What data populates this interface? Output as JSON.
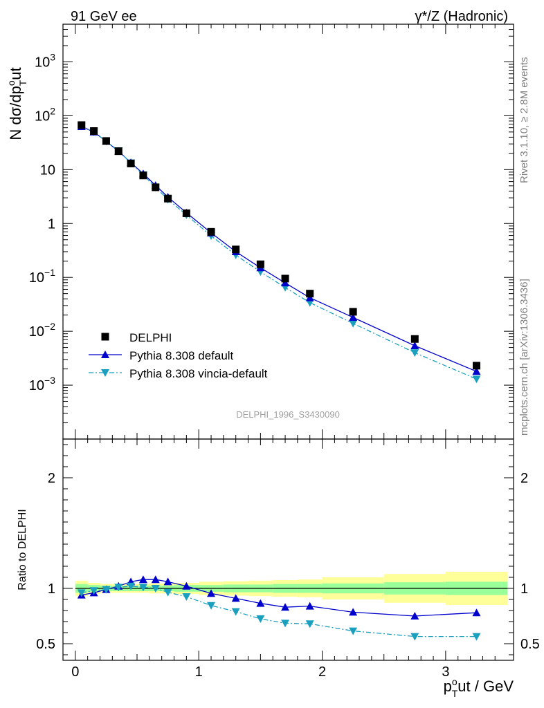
{
  "header": {
    "left": "91 GeV ee",
    "right": "γ*/Z (Hadronic)"
  },
  "side_text": {
    "rivet": "Rivet 3.1.10, ≥ 2.8M events",
    "mcplots": "mcplots.cern.ch [arXiv:1306.3436]"
  },
  "watermark": "DELPHI_1996_S3430090",
  "colors": {
    "data": "#000000",
    "pythia_default": "#0000cc",
    "pythia_vincia": "#1a9fbf",
    "band_inner": "#99ff99",
    "band_outer": "#ffff99"
  },
  "chart_data": [
    {
      "type": "scatter",
      "scale": "log",
      "ylabel": "N dσ/dp_T^out",
      "ylabel_parts": {
        "main": "N dσ/dp",
        "sup": "o",
        "sub": "T",
        "tail": "ut"
      },
      "ylim": [
        0.0001,
        5000
      ],
      "xlim": [
        -0.1,
        3.55
      ],
      "y_ticks": [
        {
          "v": 0.001,
          "base": "10",
          "exp": "−3"
        },
        {
          "v": 0.01,
          "base": "10",
          "exp": "−2"
        },
        {
          "v": 0.1,
          "base": "10",
          "exp": "−1"
        },
        {
          "v": 1,
          "base": "1",
          "exp": ""
        },
        {
          "v": 10,
          "base": "10",
          "exp": ""
        },
        {
          "v": 100,
          "base": "10",
          "exp": "2"
        },
        {
          "v": 1000,
          "base": "10",
          "exp": "3"
        }
      ],
      "legend": [
        {
          "key": "data",
          "label": "DELPHI"
        },
        {
          "key": "default",
          "label": "Pythia 8.308 default"
        },
        {
          "key": "vincia",
          "label": "Pythia 8.308 vincia-default"
        }
      ],
      "x": [
        0.05,
        0.15,
        0.25,
        0.35,
        0.45,
        0.55,
        0.65,
        0.75,
        0.9,
        1.1,
        1.3,
        1.5,
        1.7,
        1.9,
        2.25,
        2.75,
        3.25
      ],
      "series": [
        {
          "name": "DELPHI",
          "key": "data",
          "values": [
            67,
            52,
            34,
            22,
            13,
            7.8,
            4.7,
            2.9,
            1.55,
            0.7,
            0.33,
            0.175,
            0.095,
            0.05,
            0.023,
            0.0072,
            0.0023
          ]
        },
        {
          "name": "Pythia 8.308 default",
          "key": "default",
          "values": [
            63,
            50,
            33.5,
            22,
            13.5,
            8.4,
            5.1,
            3.1,
            1.58,
            0.67,
            0.3,
            0.151,
            0.079,
            0.042,
            0.0181,
            0.0054,
            0.0018
          ]
        },
        {
          "name": "Pythia 8.308 vincia-default",
          "key": "vincia",
          "values": [
            64,
            50,
            33.5,
            22.3,
            13.3,
            8.0,
            4.7,
            2.8,
            1.44,
            0.59,
            0.26,
            0.127,
            0.065,
            0.034,
            0.014,
            0.004,
            0.0013
          ]
        }
      ]
    },
    {
      "type": "line",
      "ylabel": "Ratio to DELPHI",
      "xlabel": "p_T^out / GeV",
      "xlabel_parts": {
        "main": "p",
        "sup": "o",
        "sub": "T",
        "tail": "ut / GeV"
      },
      "xlim": [
        -0.1,
        3.55
      ],
      "ylim": [
        0.35,
        2.35
      ],
      "x_ticks": [
        0,
        1,
        2,
        3
      ],
      "y_ticks": [
        0.5,
        1,
        2
      ],
      "bins": [
        [
          0,
          0.1
        ],
        [
          0.1,
          0.2
        ],
        [
          0.2,
          0.3
        ],
        [
          0.3,
          0.4
        ],
        [
          0.4,
          0.5
        ],
        [
          0.5,
          0.6
        ],
        [
          0.6,
          0.7
        ],
        [
          0.7,
          0.8
        ],
        [
          0.8,
          1.0
        ],
        [
          1.0,
          1.2
        ],
        [
          1.2,
          1.4
        ],
        [
          1.4,
          1.6
        ],
        [
          1.6,
          1.8
        ],
        [
          1.8,
          2.0
        ],
        [
          2.0,
          2.5
        ],
        [
          2.5,
          3.0
        ],
        [
          3.0,
          3.5
        ]
      ],
      "band_inner": [
        0.04,
        0.03,
        0.025,
        0.025,
        0.025,
        0.025,
        0.025,
        0.025,
        0.03,
        0.03,
        0.035,
        0.035,
        0.04,
        0.04,
        0.045,
        0.055,
        0.06
      ],
      "band_outer": [
        0.07,
        0.05,
        0.04,
        0.04,
        0.04,
        0.04,
        0.045,
        0.045,
        0.05,
        0.06,
        0.065,
        0.07,
        0.075,
        0.08,
        0.1,
        0.13,
        0.15
      ],
      "x": [
        0.05,
        0.15,
        0.25,
        0.35,
        0.45,
        0.55,
        0.65,
        0.75,
        0.9,
        1.1,
        1.3,
        1.5,
        1.7,
        1.9,
        2.25,
        2.75,
        3.25
      ],
      "series": [
        {
          "name": "Pythia 8.308 default",
          "key": "default",
          "values": [
            0.94,
            0.96,
            0.99,
            1.02,
            1.06,
            1.08,
            1.08,
            1.06,
            1.02,
            0.955,
            0.91,
            0.865,
            0.83,
            0.84,
            0.785,
            0.75,
            0.78
          ]
        },
        {
          "name": "Pythia 8.308 vincia-default",
          "key": "vincia",
          "values": [
            0.96,
            0.98,
            0.99,
            1.01,
            1.02,
            1.01,
            1.0,
            0.965,
            0.925,
            0.845,
            0.79,
            0.725,
            0.685,
            0.68,
            0.615,
            0.565,
            0.565
          ]
        }
      ]
    }
  ]
}
